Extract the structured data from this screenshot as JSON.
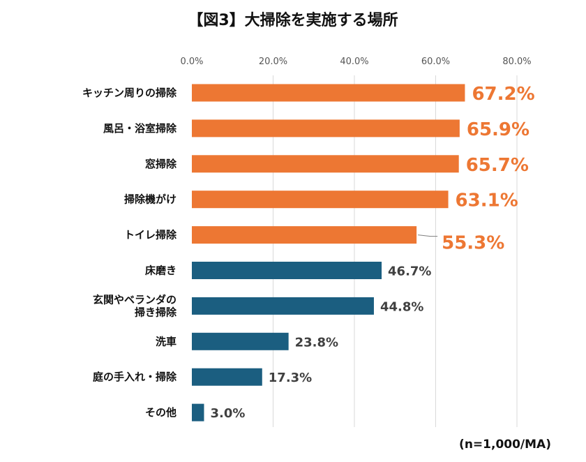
{
  "chart_data": {
    "type": "bar",
    "orientation": "horizontal",
    "title": "【図3】大掃除を実施する場所",
    "note": "(n=1,000/MA)",
    "xlim": [
      0,
      80
    ],
    "x_ticks": [
      "0.0%",
      "20.0%",
      "40.0%",
      "60.0%",
      "80.0%"
    ],
    "x_tick_values": [
      0,
      20,
      40,
      60,
      80
    ],
    "grid": true,
    "categories": [
      [
        "キッチン周りの掃除"
      ],
      [
        "風呂・浴室掃除"
      ],
      [
        "窓掃除"
      ],
      [
        "掃除機がけ"
      ],
      [
        "トイレ掃除"
      ],
      [
        "床磨き"
      ],
      [
        "玄関やベランダの",
        "掃き掃除"
      ],
      [
        "洗車"
      ],
      [
        "庭の手入れ・掃除"
      ],
      [
        "その他"
      ]
    ],
    "values": [
      67.2,
      65.9,
      65.7,
      63.1,
      55.3,
      46.7,
      44.8,
      23.8,
      17.3,
      3.0
    ],
    "value_labels": [
      "67.2%",
      "65.9%",
      "65.7%",
      "63.1%",
      "55.3%",
      "46.7%",
      "44.8%",
      "23.8%",
      "17.3%",
      "3.0%"
    ],
    "highlight_count": 5,
    "colors": {
      "highlight": "#ED7733",
      "base": "#1B5E80",
      "highlight_label": "#ED7733",
      "base_label": "#404040"
    }
  }
}
